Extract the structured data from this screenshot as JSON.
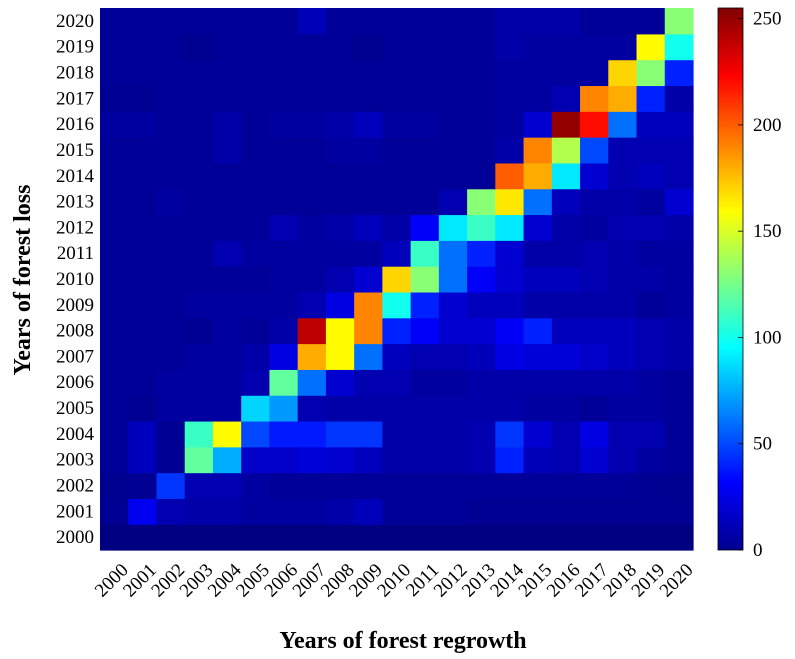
{
  "chart_data": {
    "type": "heatmap",
    "title": "",
    "xlabel": "Years of forest regrowth",
    "ylabel": "Years of forest loss",
    "x_categories": [
      "2000",
      "2001",
      "2002",
      "2003",
      "2004",
      "2005",
      "2006",
      "2007",
      "2008",
      "2009",
      "2010",
      "2011",
      "2012",
      "2013",
      "2014",
      "2015",
      "2016",
      "2017",
      "2018",
      "2019",
      "2020"
    ],
    "y_categories": [
      "2000",
      "2001",
      "2002",
      "2003",
      "2004",
      "2005",
      "2006",
      "2007",
      "2008",
      "2009",
      "2010",
      "2011",
      "2012",
      "2013",
      "2014",
      "2015",
      "2016",
      "2017",
      "2018",
      "2019",
      "2020"
    ],
    "colorscale": "jet",
    "colorbar": {
      "min": 0,
      "max": 255,
      "ticks": [
        "0",
        "50",
        "100",
        "150",
        "200",
        "250"
      ]
    },
    "z_note": "rows are loss years 2000..2020, columns are regrowth years 2000..2020",
    "z": [
      [
        0,
        0,
        0,
        0,
        0,
        0,
        0,
        0,
        0,
        0,
        0,
        0,
        0,
        0,
        0,
        0,
        0,
        0,
        0,
        0,
        0
      ],
      [
        5,
        28,
        12,
        10,
        10,
        8,
        8,
        8,
        10,
        14,
        6,
        6,
        6,
        5,
        5,
        5,
        5,
        5,
        5,
        5,
        5
      ],
      [
        4,
        5,
        45,
        12,
        12,
        8,
        6,
        6,
        6,
        6,
        6,
        6,
        6,
        6,
        6,
        6,
        6,
        6,
        6,
        5,
        4
      ],
      [
        6,
        15,
        5,
        120,
        75,
        18,
        18,
        22,
        20,
        15,
        10,
        10,
        10,
        12,
        40,
        14,
        12,
        20,
        12,
        8,
        6
      ],
      [
        6,
        15,
        5,
        110,
        160,
        50,
        38,
        38,
        45,
        45,
        10,
        10,
        10,
        12,
        45,
        20,
        12,
        25,
        12,
        12,
        6
      ],
      [
        6,
        5,
        8,
        8,
        8,
        85,
        70,
        12,
        10,
        10,
        10,
        10,
        10,
        10,
        10,
        8,
        8,
        6,
        8,
        8,
        6
      ],
      [
        6,
        6,
        8,
        8,
        8,
        12,
        120,
        60,
        20,
        12,
        12,
        8,
        8,
        10,
        10,
        10,
        10,
        10,
        10,
        8,
        6
      ],
      [
        6,
        6,
        6,
        8,
        8,
        10,
        25,
        180,
        160,
        60,
        15,
        12,
        12,
        14,
        25,
        22,
        22,
        18,
        15,
        12,
        10
      ],
      [
        6,
        6,
        6,
        5,
        8,
        6,
        10,
        240,
        160,
        190,
        40,
        30,
        20,
        20,
        30,
        40,
        15,
        15,
        15,
        12,
        10
      ],
      [
        6,
        6,
        6,
        8,
        8,
        8,
        8,
        12,
        25,
        190,
        100,
        40,
        20,
        15,
        15,
        10,
        10,
        10,
        10,
        6,
        8
      ],
      [
        6,
        6,
        6,
        6,
        6,
        6,
        8,
        8,
        12,
        20,
        170,
        130,
        60,
        30,
        20,
        15,
        15,
        12,
        10,
        10,
        8
      ],
      [
        6,
        6,
        6,
        6,
        12,
        8,
        8,
        8,
        8,
        8,
        15,
        110,
        60,
        40,
        20,
        10,
        10,
        12,
        10,
        8,
        8
      ],
      [
        6,
        6,
        6,
        6,
        6,
        6,
        12,
        8,
        10,
        15,
        10,
        30,
        90,
        110,
        90,
        20,
        10,
        8,
        12,
        12,
        10
      ],
      [
        6,
        6,
        8,
        6,
        6,
        6,
        6,
        6,
        6,
        6,
        6,
        6,
        12,
        130,
        165,
        60,
        15,
        10,
        10,
        8,
        20
      ],
      [
        6,
        6,
        6,
        6,
        6,
        6,
        6,
        6,
        6,
        6,
        6,
        6,
        6,
        6,
        200,
        180,
        90,
        20,
        12,
        15,
        12
      ],
      [
        6,
        6,
        6,
        6,
        10,
        6,
        6,
        6,
        8,
        8,
        6,
        6,
        6,
        6,
        10,
        190,
        140,
        50,
        12,
        12,
        12
      ],
      [
        8,
        8,
        6,
        6,
        10,
        6,
        8,
        8,
        10,
        15,
        8,
        8,
        6,
        6,
        8,
        20,
        250,
        220,
        60,
        15,
        15
      ],
      [
        5,
        5,
        6,
        6,
        6,
        6,
        6,
        6,
        6,
        6,
        6,
        6,
        6,
        6,
        8,
        8,
        12,
        190,
        180,
        40,
        10
      ],
      [
        6,
        6,
        6,
        6,
        6,
        6,
        6,
        6,
        6,
        6,
        6,
        6,
        6,
        6,
        8,
        8,
        8,
        8,
        170,
        130,
        40
      ],
      [
        6,
        6,
        6,
        4,
        6,
        6,
        6,
        6,
        6,
        4,
        6,
        6,
        6,
        6,
        10,
        8,
        8,
        8,
        8,
        160,
        100
      ],
      [
        6,
        6,
        6,
        6,
        6,
        6,
        6,
        14,
        6,
        6,
        6,
        6,
        6,
        6,
        10,
        10,
        10,
        6,
        6,
        6,
        130
      ]
    ]
  }
}
